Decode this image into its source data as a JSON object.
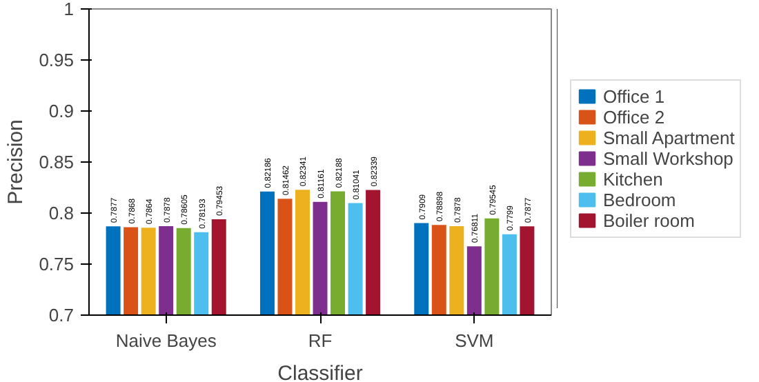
{
  "chart_data": {
    "type": "bar",
    "xlabel": "Classifier",
    "ylabel": "Precision",
    "categories": [
      "Naive Bayes",
      "RF",
      "SVM"
    ],
    "series": [
      {
        "name": "Office 1",
        "color": "#0072bd",
        "values": [
          0.7877,
          0.82186,
          0.7909
        ]
      },
      {
        "name": "Office 2",
        "color": "#d95319",
        "values": [
          0.7868,
          0.81462,
          0.78898
        ]
      },
      {
        "name": "Small Apartment",
        "color": "#edb120",
        "values": [
          0.7864,
          0.82341,
          0.7878
        ]
      },
      {
        "name": "Small Workshop",
        "color": "#7e2f8e",
        "values": [
          0.7878,
          0.81161,
          0.76811
        ]
      },
      {
        "name": "Kitchen",
        "color": "#77ac30",
        "values": [
          0.78605,
          0.82188,
          0.79545
        ]
      },
      {
        "name": "Bedroom",
        "color": "#4dbeee",
        "values": [
          0.78193,
          0.81041,
          0.7799
        ]
      },
      {
        "name": "Boiler room",
        "color": "#a2142f",
        "values": [
          0.79453,
          0.82339,
          0.7877
        ]
      }
    ],
    "ylim": [
      0.7,
      1
    ],
    "yticks": [
      0.7,
      0.75,
      0.8,
      0.85,
      0.9,
      0.95,
      1
    ],
    "grid": false,
    "legend": "right",
    "data_labels": true
  }
}
